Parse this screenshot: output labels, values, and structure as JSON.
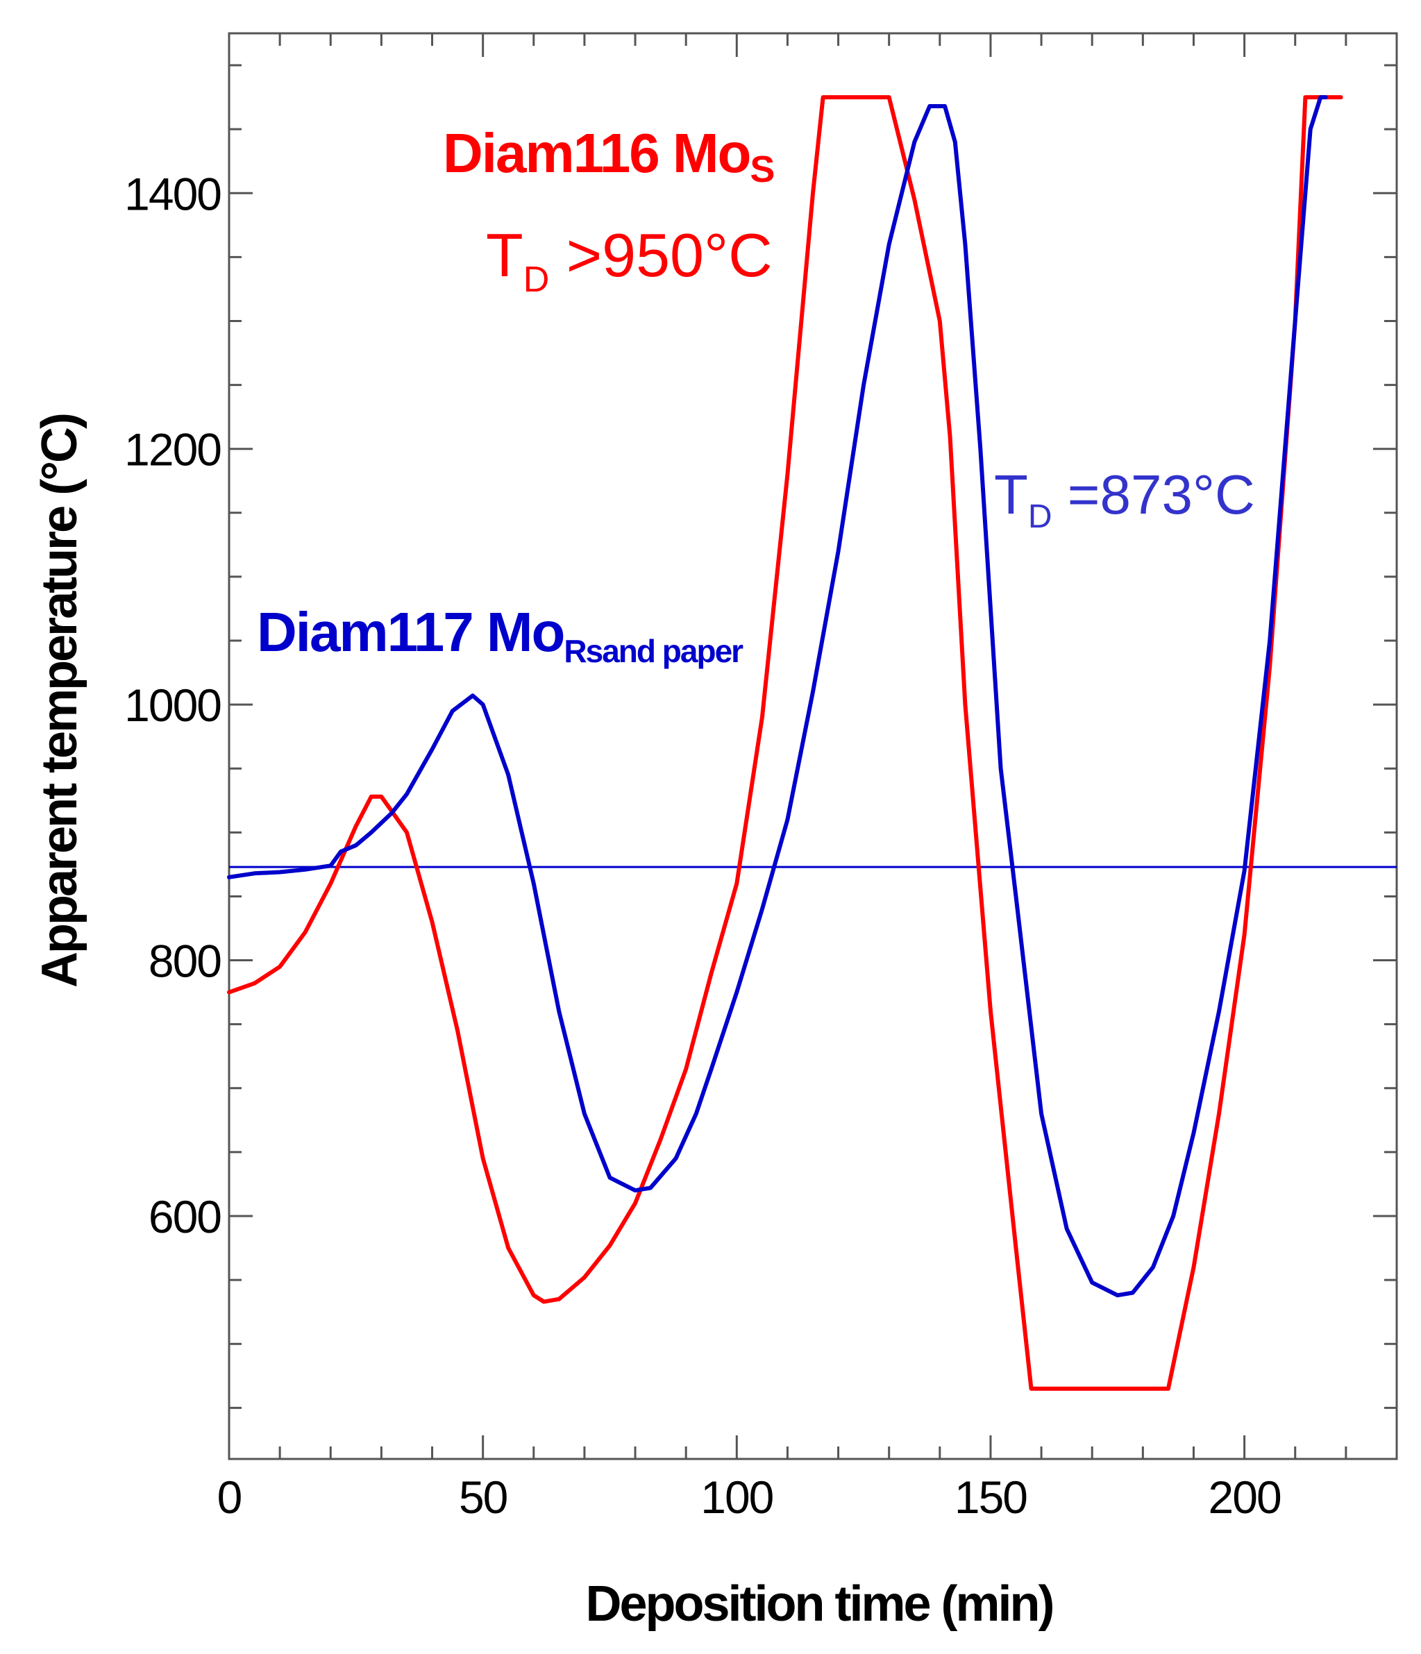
{
  "chart_data": {
    "type": "line",
    "xlabel": "Deposition time (min)",
    "ylabel": "Apparent temperature (°C)",
    "xlim": [
      0,
      230
    ],
    "ylim": [
      410,
      1525
    ],
    "x_major_ticks": [
      0,
      50,
      100,
      150,
      200
    ],
    "x_tick_labels": [
      "0",
      "50",
      "100",
      "150",
      "200"
    ],
    "y_major_ticks": [
      600,
      800,
      1000,
      1200,
      1400
    ],
    "y_tick_labels": [
      "600",
      "800",
      "1000",
      "1200",
      "1400"
    ],
    "x_minor_step": 10,
    "y_minor_step": 50,
    "grid": false,
    "series": [
      {
        "color": "#ff0000",
        "points": [
          [
            0,
            775
          ],
          [
            5,
            782
          ],
          [
            10,
            795
          ],
          [
            15,
            822
          ],
          [
            20,
            860
          ],
          [
            25,
            905
          ],
          [
            28,
            928
          ],
          [
            30,
            928
          ],
          [
            35,
            900
          ],
          [
            40,
            830
          ],
          [
            45,
            745
          ],
          [
            50,
            645
          ],
          [
            55,
            575
          ],
          [
            60,
            538
          ],
          [
            62,
            533
          ],
          [
            65,
            535
          ],
          [
            70,
            552
          ],
          [
            75,
            577
          ],
          [
            80,
            610
          ],
          [
            85,
            660
          ],
          [
            90,
            715
          ],
          [
            95,
            790
          ],
          [
            100,
            860
          ],
          [
            105,
            990
          ],
          [
            110,
            1180
          ],
          [
            115,
            1400
          ],
          [
            117,
            1475
          ],
          [
            130,
            1475
          ],
          [
            135,
            1395
          ],
          [
            140,
            1300
          ],
          [
            142,
            1210
          ],
          [
            145,
            1000
          ],
          [
            150,
            760
          ],
          [
            155,
            575
          ],
          [
            158,
            465
          ],
          [
            185,
            465
          ],
          [
            190,
            560
          ],
          [
            195,
            680
          ],
          [
            200,
            820
          ],
          [
            205,
            1030
          ],
          [
            210,
            1300
          ],
          [
            212,
            1475
          ],
          [
            219,
            1475
          ]
        ]
      },
      {
        "color": "#0000cc",
        "points": [
          [
            0,
            865
          ],
          [
            5,
            868
          ],
          [
            10,
            869
          ],
          [
            15,
            871
          ],
          [
            20,
            874
          ],
          [
            22,
            885
          ],
          [
            25,
            890
          ],
          [
            28,
            900
          ],
          [
            32,
            915
          ],
          [
            35,
            930
          ],
          [
            40,
            965
          ],
          [
            44,
            995
          ],
          [
            48,
            1007
          ],
          [
            50,
            1000
          ],
          [
            55,
            945
          ],
          [
            60,
            860
          ],
          [
            65,
            760
          ],
          [
            70,
            680
          ],
          [
            75,
            630
          ],
          [
            80,
            620
          ],
          [
            83,
            622
          ],
          [
            88,
            645
          ],
          [
            92,
            680
          ],
          [
            95,
            715
          ],
          [
            100,
            775
          ],
          [
            105,
            840
          ],
          [
            110,
            910
          ],
          [
            115,
            1010
          ],
          [
            120,
            1120
          ],
          [
            125,
            1250
          ],
          [
            130,
            1360
          ],
          [
            135,
            1440
          ],
          [
            138,
            1468
          ],
          [
            141,
            1468
          ],
          [
            143,
            1440
          ],
          [
            145,
            1360
          ],
          [
            148,
            1200
          ],
          [
            152,
            950
          ],
          [
            155,
            850
          ],
          [
            160,
            680
          ],
          [
            165,
            590
          ],
          [
            170,
            548
          ],
          [
            175,
            538
          ],
          [
            178,
            540
          ],
          [
            182,
            560
          ],
          [
            186,
            600
          ],
          [
            190,
            665
          ],
          [
            195,
            760
          ],
          [
            200,
            870
          ],
          [
            205,
            1050
          ],
          [
            210,
            1300
          ],
          [
            213,
            1450
          ],
          [
            215,
            1475
          ],
          [
            216,
            1475
          ]
        ]
      }
    ],
    "reference_line": {
      "y": 873,
      "color": "#0000cc"
    },
    "annotations": [
      {
        "main": "Diam116 Mo",
        "sub": "S",
        "color": "#ff0000",
        "weight": "bold"
      },
      {
        "main": "T",
        "sub": "D",
        "rest": " >950°C",
        "color": "#ff0000",
        "weight": "normal"
      },
      {
        "main": "Diam117 Mo",
        "sub": "Rsand paper",
        "color": "#0000cc",
        "weight": "bold"
      },
      {
        "main": "T",
        "sub": "D",
        "rest": " =873°C",
        "color": "#3333cc",
        "weight": "normal"
      }
    ]
  }
}
